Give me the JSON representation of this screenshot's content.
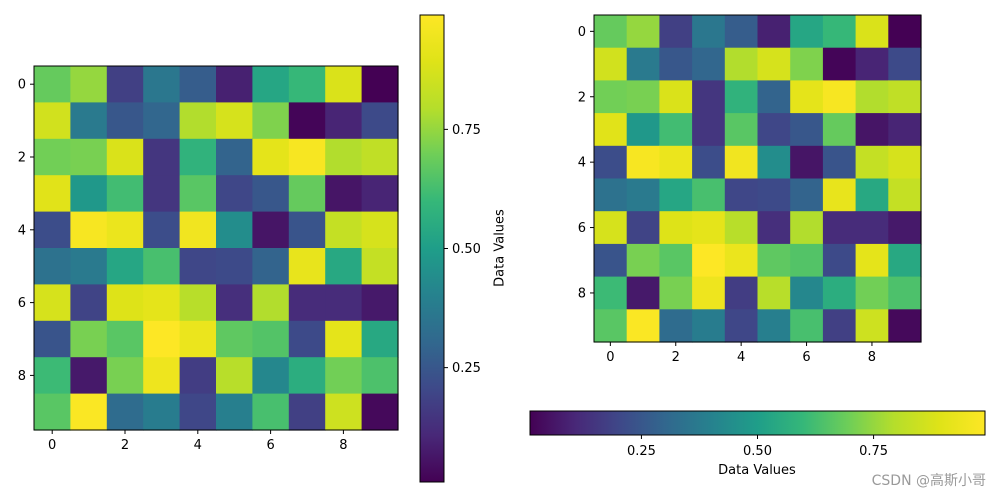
{
  "watermark": "CSDN @高斯小哥",
  "chart_data": [
    {
      "type": "heatmap",
      "colormap": "viridis",
      "rows": 10,
      "cols": 10,
      "x_ticks": [
        0,
        2,
        4,
        6,
        8
      ],
      "y_ticks": [
        0,
        2,
        4,
        6,
        8
      ],
      "values": [
        [
          0.68,
          0.75,
          0.18,
          0.36,
          0.27,
          0.09,
          0.53,
          0.6,
          0.88,
          0.01
        ],
        [
          0.86,
          0.37,
          0.25,
          0.3,
          0.79,
          0.87,
          0.72,
          0.02,
          0.1,
          0.21
        ],
        [
          0.7,
          0.71,
          0.88,
          0.15,
          0.58,
          0.29,
          0.91,
          0.97,
          0.79,
          0.82
        ],
        [
          0.9,
          0.48,
          0.62,
          0.15,
          0.66,
          0.2,
          0.25,
          0.68,
          0.06,
          0.1
        ],
        [
          0.22,
          0.97,
          0.93,
          0.22,
          0.95,
          0.44,
          0.06,
          0.24,
          0.83,
          0.87
        ],
        [
          0.34,
          0.37,
          0.53,
          0.63,
          0.2,
          0.21,
          0.29,
          0.92,
          0.54,
          0.83
        ],
        [
          0.87,
          0.19,
          0.89,
          0.91,
          0.8,
          0.13,
          0.79,
          0.12,
          0.12,
          0.07
        ],
        [
          0.24,
          0.71,
          0.66,
          0.99,
          0.93,
          0.67,
          0.65,
          0.21,
          0.91,
          0.54
        ],
        [
          0.61,
          0.07,
          0.71,
          0.94,
          0.17,
          0.8,
          0.42,
          0.56,
          0.7,
          0.64
        ],
        [
          0.66,
          0.98,
          0.32,
          0.38,
          0.2,
          0.39,
          0.63,
          0.18,
          0.85,
          0.03
        ]
      ]
    },
    {
      "type": "heatmap",
      "colormap": "viridis",
      "rows": 10,
      "cols": 10,
      "x_ticks": [
        0,
        2,
        4,
        6,
        8
      ],
      "y_ticks": [
        0,
        2,
        4,
        6,
        8
      ],
      "values": [
        [
          0.68,
          0.75,
          0.18,
          0.36,
          0.27,
          0.09,
          0.53,
          0.6,
          0.88,
          0.01
        ],
        [
          0.86,
          0.37,
          0.25,
          0.3,
          0.79,
          0.87,
          0.72,
          0.02,
          0.1,
          0.21
        ],
        [
          0.7,
          0.71,
          0.88,
          0.15,
          0.58,
          0.29,
          0.91,
          0.97,
          0.79,
          0.82
        ],
        [
          0.9,
          0.48,
          0.62,
          0.15,
          0.66,
          0.2,
          0.25,
          0.68,
          0.06,
          0.1
        ],
        [
          0.22,
          0.97,
          0.93,
          0.22,
          0.95,
          0.44,
          0.06,
          0.24,
          0.83,
          0.87
        ],
        [
          0.34,
          0.37,
          0.53,
          0.63,
          0.2,
          0.21,
          0.29,
          0.92,
          0.54,
          0.83
        ],
        [
          0.87,
          0.19,
          0.89,
          0.91,
          0.8,
          0.13,
          0.79,
          0.12,
          0.12,
          0.07
        ],
        [
          0.24,
          0.71,
          0.66,
          0.99,
          0.93,
          0.67,
          0.65,
          0.21,
          0.91,
          0.54
        ],
        [
          0.61,
          0.07,
          0.71,
          0.94,
          0.17,
          0.8,
          0.42,
          0.56,
          0.7,
          0.64
        ],
        [
          0.66,
          0.98,
          0.32,
          0.38,
          0.2,
          0.39,
          0.63,
          0.18,
          0.85,
          0.03
        ]
      ]
    }
  ],
  "colorbars": [
    {
      "orientation": "vertical",
      "label": "Data Values",
      "range": [
        0.01,
        0.99
      ],
      "ticks": [
        0.25,
        0.5,
        0.75
      ],
      "tick_labels": [
        "0.25",
        "0.50",
        "0.75"
      ]
    },
    {
      "orientation": "horizontal",
      "label": "Data Values",
      "range": [
        0.01,
        0.99
      ],
      "ticks": [
        0.25,
        0.5,
        0.75
      ],
      "tick_labels": [
        "0.25",
        "0.50",
        "0.75"
      ]
    }
  ]
}
